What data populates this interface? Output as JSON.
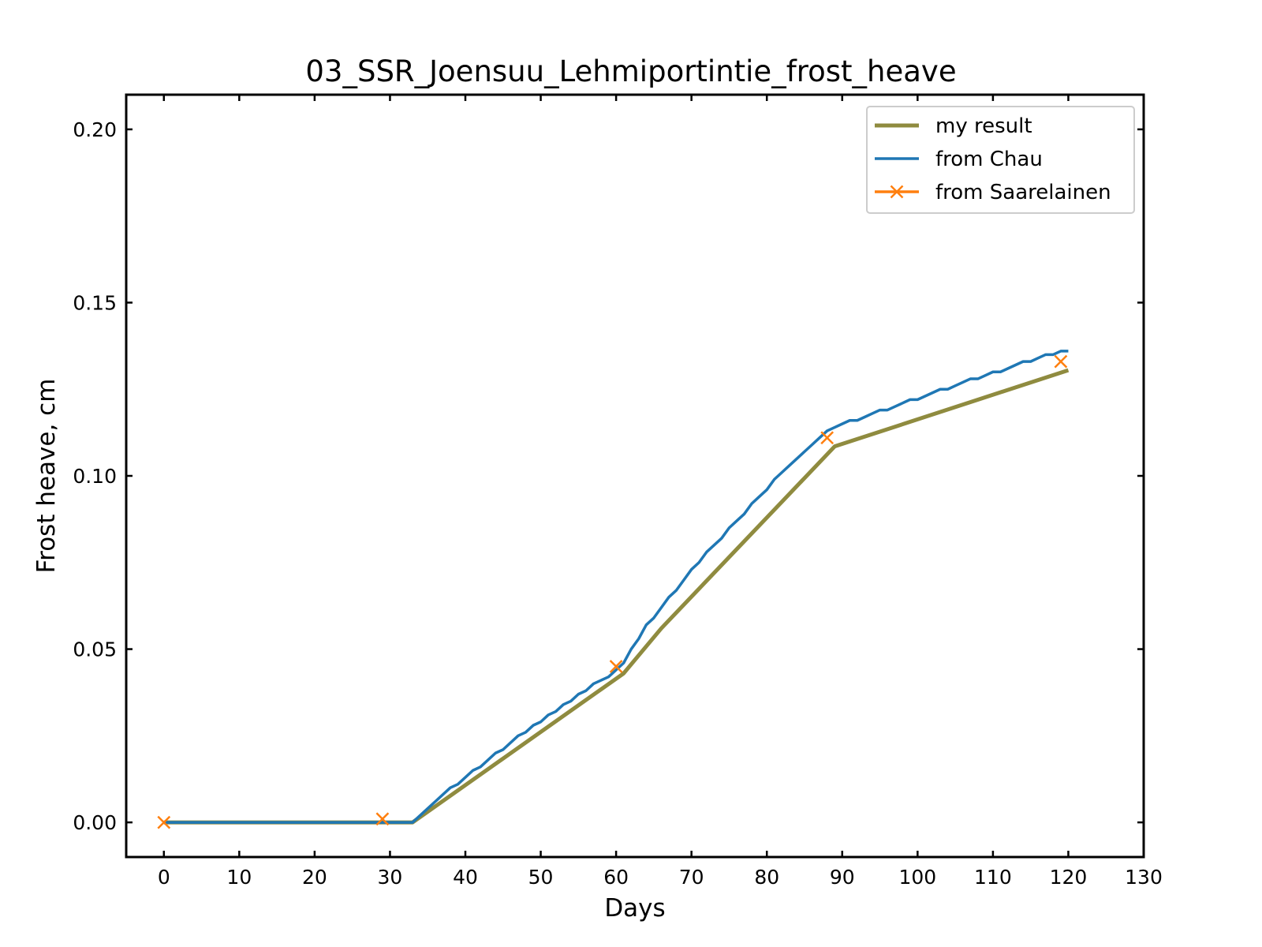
{
  "chart_data": {
    "type": "line",
    "title": "03_SSR_Joensuu_Lehmiportintie_frost_heave",
    "xlabel": "Days",
    "ylabel": "Frost heave, cm",
    "xlim": [
      -5,
      130
    ],
    "ylim": [
      -0.01,
      0.21
    ],
    "xticks": [
      0,
      10,
      20,
      30,
      40,
      50,
      60,
      70,
      80,
      90,
      100,
      110,
      120,
      130
    ],
    "xtick_labels": [
      "0",
      "10",
      "20",
      "30",
      "40",
      "50",
      "60",
      "70",
      "80",
      "90",
      "100",
      "110",
      "120",
      "130"
    ],
    "yticks": [
      0.0,
      0.05,
      0.1,
      0.15,
      0.2
    ],
    "ytick_labels": [
      "0.00",
      "0.05",
      "0.10",
      "0.15",
      "0.20"
    ],
    "grid": false,
    "legend_position": "top-right",
    "series": [
      {
        "name": "my result",
        "color": "#8f8b3f",
        "marker": "none",
        "x": [
          0,
          33,
          61,
          66,
          89,
          120
        ],
        "y": [
          0.0,
          0.0,
          0.043,
          0.056,
          0.1085,
          0.1305
        ]
      },
      {
        "name": "from Chau",
        "color": "#1f77b4",
        "marker": "none",
        "x": [
          0,
          33,
          34,
          36,
          38,
          39,
          41,
          42,
          44,
          45,
          47,
          48,
          49,
          50,
          51,
          52,
          53,
          54,
          55,
          56,
          57,
          58,
          59,
          60,
          61,
          62,
          63,
          64,
          65,
          66,
          67,
          68,
          69,
          70,
          71,
          72,
          73,
          74,
          75,
          76,
          77,
          78,
          79,
          80,
          81,
          82,
          83,
          84,
          85,
          86,
          87,
          88,
          89,
          90,
          91,
          92,
          93,
          94,
          95,
          96,
          97,
          98,
          99,
          100,
          101,
          102,
          103,
          104,
          105,
          106,
          107,
          108,
          109,
          110,
          111,
          112,
          113,
          114,
          115,
          116,
          117,
          118,
          119,
          120
        ],
        "y": [
          0.0,
          0.0,
          0.002,
          0.006,
          0.01,
          0.011,
          0.015,
          0.016,
          0.02,
          0.021,
          0.025,
          0.026,
          0.028,
          0.029,
          0.031,
          0.032,
          0.034,
          0.035,
          0.037,
          0.038,
          0.04,
          0.041,
          0.042,
          0.044,
          0.046,
          0.05,
          0.053,
          0.057,
          0.059,
          0.062,
          0.065,
          0.067,
          0.07,
          0.073,
          0.075,
          0.078,
          0.08,
          0.082,
          0.085,
          0.087,
          0.089,
          0.092,
          0.094,
          0.096,
          0.099,
          0.101,
          0.103,
          0.105,
          0.107,
          0.109,
          0.111,
          0.113,
          0.114,
          0.115,
          0.116,
          0.116,
          0.117,
          0.118,
          0.119,
          0.119,
          0.12,
          0.121,
          0.122,
          0.122,
          0.123,
          0.124,
          0.125,
          0.125,
          0.126,
          0.127,
          0.128,
          0.128,
          0.129,
          0.13,
          0.13,
          0.131,
          0.132,
          0.133,
          0.133,
          0.134,
          0.135,
          0.135,
          0.136,
          0.136
        ]
      },
      {
        "name": "from Saarelainen",
        "color": "#ff7f0e",
        "marker": "x",
        "line": "none",
        "x": [
          0,
          29,
          60,
          88,
          119
        ],
        "y": [
          0.0,
          0.001,
          0.045,
          0.111,
          0.133
        ]
      }
    ]
  }
}
